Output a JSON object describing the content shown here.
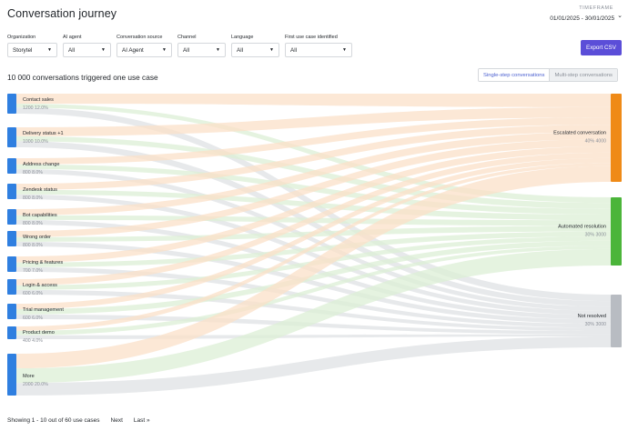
{
  "page": {
    "title": "Conversation journey"
  },
  "timeframe": {
    "label": "TIMEFRAME",
    "value": "01/01/2025 - 30/01/2025"
  },
  "filters": [
    {
      "label": "Organization",
      "value": "Storytel"
    },
    {
      "label": "AI agent",
      "value": "All"
    },
    {
      "label": "Conversation source",
      "value": "AI Agent"
    },
    {
      "label": "Channel",
      "value": "All"
    },
    {
      "label": "Language",
      "value": "All"
    },
    {
      "label": "First use case identified",
      "value": "All"
    }
  ],
  "export_label": "Export CSV",
  "summary": "10 000 conversations triggered one use case",
  "view_toggle": {
    "single": "Single-step conversations",
    "multi": "Multi-step conversations",
    "active": "single"
  },
  "colors": {
    "escalated": "#ef8a17",
    "automated": "#4bb53a",
    "unresolved": "#b8bcc2",
    "source": "#2f7fe0",
    "accent": "#5b4ed8"
  },
  "sources": [
    {
      "label": "Contact sales",
      "count": "1200",
      "pct": "12.0%",
      "value": 1200
    },
    {
      "label": "Delivery status +1",
      "count": "1000",
      "pct": "10.0%",
      "value": 1000
    },
    {
      "label": "Address change",
      "count": "800",
      "pct": "8.0%",
      "value": 800
    },
    {
      "label": "Zendesk status",
      "count": "800",
      "pct": "8.0%",
      "value": 800
    },
    {
      "label": "Bot capabilities",
      "count": "800",
      "pct": "8.0%",
      "value": 800
    },
    {
      "label": "Wrong order",
      "count": "800",
      "pct": "8.0%",
      "value": 800
    },
    {
      "label": "Pricing & features",
      "count": "700",
      "pct": "7.0%",
      "value": 700
    },
    {
      "label": "Login & access",
      "count": "600",
      "pct": "6.0%",
      "value": 600
    },
    {
      "label": "Trial management",
      "count": "600",
      "pct": "6.0%",
      "value": 600
    },
    {
      "label": "Product demo",
      "count": "400",
      "pct": "4.0%",
      "value": 400
    },
    {
      "label": "More",
      "count": "2000",
      "pct": "20.0%",
      "value": 2000
    }
  ],
  "targets": [
    {
      "key": "escalated",
      "label": "Escalated conversation",
      "pct": "40%",
      "count": "4000",
      "value": 4000
    },
    {
      "key": "automated",
      "label": "Automated resolution",
      "pct": "30%",
      "count": "3000",
      "value": 3000
    },
    {
      "key": "unresolved",
      "label": "Not resolved",
      "pct": "30%",
      "count": "3000",
      "value": 3000
    }
  ],
  "pagination": {
    "showing": "Showing 1 - 10 out of 60 use cases",
    "next": "Next",
    "last": "Last"
  }
}
